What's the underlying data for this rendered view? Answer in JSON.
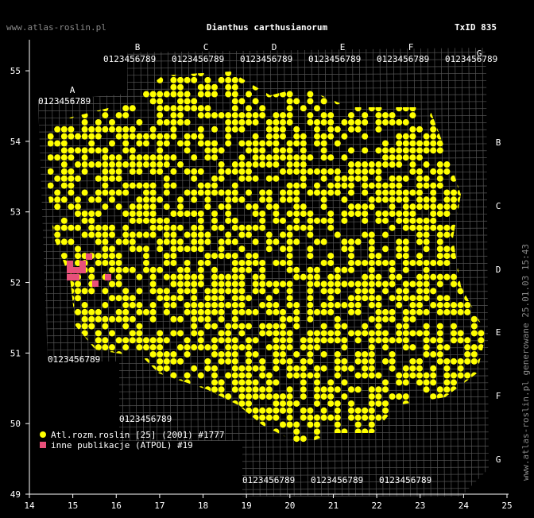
{
  "header": {
    "site": "www.atlas-roslin.pl",
    "title": "Dianthus carthusianorum",
    "txid": "TxID 835"
  },
  "axes": {
    "xlim": [
      14,
      25
    ],
    "ylim": [
      49,
      55.44
    ],
    "xticks": [
      14,
      15,
      16,
      17,
      18,
      19,
      20,
      21,
      22,
      23,
      24,
      25
    ],
    "yticks": [
      49,
      50,
      51,
      52,
      53,
      54,
      55
    ]
  },
  "grid": {
    "column_letters": [
      "A",
      "B",
      "C",
      "D",
      "E",
      "F",
      "G"
    ],
    "row_letters": [
      "B",
      "C",
      "D",
      "E",
      "F",
      "G"
    ],
    "digits": "0123456789"
  },
  "legend": [
    {
      "label": "Atl.rozm.roslin [25] (2001) #1777",
      "color": "#ffff00"
    },
    {
      "label": "inne publikacje (ATPOL) #19",
      "color": "#e8507a"
    }
  ],
  "footer": "www.atlas-roslin.pl generowane 25.01.03 15:43"
}
